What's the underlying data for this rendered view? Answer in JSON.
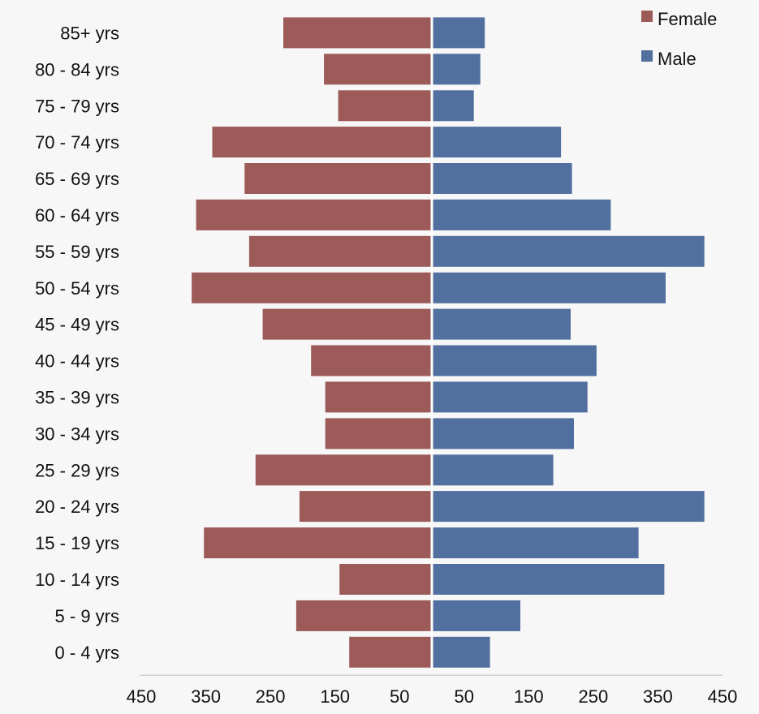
{
  "chart_data": {
    "type": "bar",
    "orientation": "horizontal",
    "title": "",
    "xlabel": "",
    "ylabel": "",
    "categories": [
      "85+ yrs",
      "80 - 84 yrs",
      "75 - 79 yrs",
      "70 - 74 yrs",
      "65 - 69 yrs",
      "60 - 64 yrs",
      "55 - 59 yrs",
      "50 - 54 yrs",
      "45 - 49 yrs",
      "40 - 44 yrs",
      "35 - 39 yrs",
      "30 - 34 yrs",
      "25 - 29 yrs",
      "20 - 24 yrs",
      "15 - 19 yrs",
      "10 - 14 yrs",
      "5 - 9 yrs",
      "0 - 4 yrs"
    ],
    "series": [
      {
        "name": "Female",
        "color": "#9c5a58",
        "values": [
          230,
          167,
          145,
          340,
          290,
          365,
          283,
          372,
          262,
          187,
          165,
          165,
          273,
          205,
          353,
          143,
          210,
          128
        ]
      },
      {
        "name": "Male",
        "color": "#52709f",
        "values": [
          82,
          75,
          65,
          200,
          217,
          277,
          422,
          362,
          215,
          255,
          241,
          220,
          188,
          422,
          320,
          360,
          137,
          90
        ]
      }
    ],
    "xlim": [
      -450,
      450
    ],
    "tick_values": [
      -450,
      -350,
      -250,
      -150,
      -50,
      50,
      150,
      250,
      350,
      450
    ],
    "tick_labels": [
      "450",
      "350",
      "250",
      "150",
      "50",
      "50",
      "150",
      "250",
      "350",
      "450"
    ],
    "grid": false,
    "legend_position": "top-right"
  }
}
